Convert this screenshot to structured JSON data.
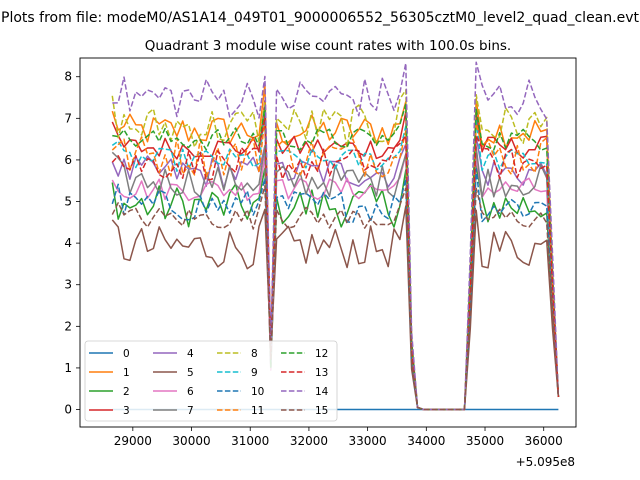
{
  "figure": {
    "suptitle": "Plots from file: modeM0/AS1A14_049T01_9000006552_56305cztM0_level2_quad_clean.evt"
  },
  "chart_data": {
    "type": "line",
    "title": "Quadrant 3 module wise count rates with 100.0s bins.",
    "xlabel": "",
    "ylabel": "",
    "x_offset_label": "+5.095e8",
    "x_offset": 509500000,
    "xlim": [
      28100,
      36550
    ],
    "ylim": [
      -0.42,
      8.45
    ],
    "xticks": [
      29000,
      30000,
      31000,
      32000,
      33000,
      34000,
      35000,
      36000
    ],
    "yticks": [
      0,
      1,
      2,
      3,
      4,
      5,
      6,
      7,
      8
    ],
    "grid": false,
    "legend_position": "lower-left",
    "legend_columns": 4,
    "x_bins_seg1": [
      28650,
      28750,
      28850,
      28950,
      29050,
      29150,
      29250,
      29350,
      29450,
      29550,
      29650,
      29750,
      29850,
      29950,
      30050,
      30150,
      30250,
      30350,
      30450,
      30550,
      30650,
      30750,
      30850,
      30950,
      31050,
      31150,
      31250,
      31350,
      31450,
      31550,
      31650,
      31750,
      31850,
      31950,
      32050,
      32150,
      32250,
      32350,
      32450,
      32550,
      32650,
      32750,
      32850,
      32950,
      33050,
      33150,
      33250,
      33350,
      33450,
      33550,
      33650,
      33750,
      33850
    ],
    "gap_x": [
      33950,
      34050,
      34150,
      34250,
      34350,
      34450,
      34550,
      34650
    ],
    "x_bins_seg2": [
      34750,
      34850,
      34950,
      35050,
      35150,
      35250,
      35350,
      35450,
      35550,
      35650,
      35750,
      35850,
      35950,
      36050,
      36150,
      36250
    ],
    "series": [
      {
        "name": "0",
        "color": "#1f77b4",
        "dash": "solid",
        "level": 0.0
      },
      {
        "name": "1",
        "color": "#ff7f0e",
        "dash": "solid",
        "level": 6.7
      },
      {
        "name": "2",
        "color": "#2ca02c",
        "dash": "solid",
        "level": 4.9
      },
      {
        "name": "3",
        "color": "#d62728",
        "dash": "solid",
        "level": 6.3
      },
      {
        "name": "4",
        "color": "#9467bd",
        "dash": "solid",
        "level": 5.7
      },
      {
        "name": "5",
        "color": "#8c564b",
        "dash": "solid",
        "level": 3.9
      },
      {
        "name": "6",
        "color": "#e377c2",
        "dash": "solid",
        "level": 5.3
      },
      {
        "name": "7",
        "color": "#7f7f7f",
        "dash": "solid",
        "level": 5.5
      },
      {
        "name": "8",
        "color": "#bcbd22",
        "dash": "dashed",
        "level": 6.8
      },
      {
        "name": "9",
        "color": "#17becf",
        "dash": "dashed",
        "level": 6.0
      },
      {
        "name": "10",
        "color": "#1f77b4",
        "dash": "dashed",
        "level": 4.9
      },
      {
        "name": "11",
        "color": "#ff7f0e",
        "dash": "dashed",
        "level": 6.1
      },
      {
        "name": "12",
        "color": "#2ca02c",
        "dash": "dashed",
        "level": 6.5
      },
      {
        "name": "13",
        "color": "#d62728",
        "dash": "dashed",
        "level": 5.9
      },
      {
        "name": "14",
        "color": "#9467bd",
        "dash": "dashed",
        "level": 7.5
      },
      {
        "name": "15",
        "color": "#8c564b",
        "dash": "dashed",
        "level": 4.6
      }
    ]
  }
}
